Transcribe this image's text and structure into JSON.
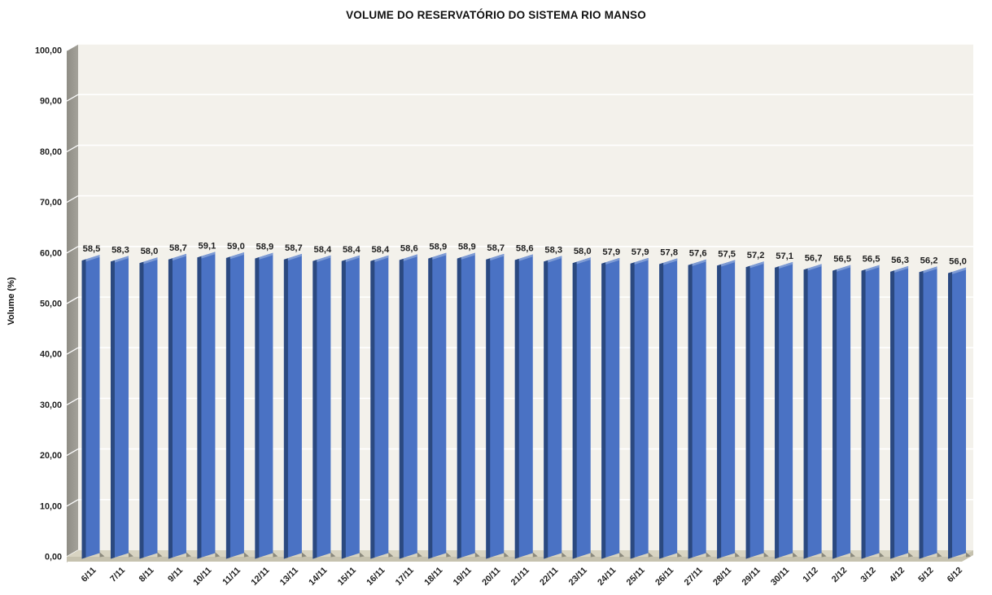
{
  "chart_data": {
    "type": "bar",
    "style": "3d-column",
    "title": "VOLUME DO RESERVATÓRIO DO SISTEMA RIO MANSO",
    "ylabel": "Volume (%)",
    "xlabel": "",
    "ylim": [
      0,
      100
    ],
    "ytick_step": 10,
    "ytick_decimals": 2,
    "value_decimals": 1,
    "decimal_separator": ",",
    "grid": true,
    "legend": "none",
    "categories": [
      "6/11",
      "7/11",
      "8/11",
      "9/11",
      "10/11",
      "11/11",
      "12/11",
      "13/11",
      "14/11",
      "15/11",
      "16/11",
      "17/11",
      "18/11",
      "19/11",
      "20/11",
      "21/11",
      "22/11",
      "23/11",
      "24/11",
      "25/11",
      "26/11",
      "27/11",
      "28/11",
      "29/11",
      "30/11",
      "1/12",
      "2/12",
      "3/12",
      "4/12",
      "5/12",
      "6/12"
    ],
    "values": [
      58.5,
      58.3,
      58.0,
      58.7,
      59.1,
      59.0,
      58.9,
      58.7,
      58.4,
      58.4,
      58.4,
      58.6,
      58.9,
      58.9,
      58.7,
      58.6,
      58.3,
      58.0,
      57.9,
      57.9,
      57.8,
      57.6,
      57.5,
      57.2,
      57.1,
      56.7,
      56.5,
      56.5,
      56.3,
      56.2,
      56.0
    ],
    "colors": {
      "bar_face": "#4A72C4",
      "bar_side": "#2B4980",
      "bar_top": "#7E9BD4",
      "back_wall": "#F3F1EB",
      "side_wall": "#A4A29A",
      "side_wall_dark": "#8F8D85",
      "floor": "#D8D4C2",
      "floor_front": "#C6C2AF",
      "shadow_wedge": "#8B897C",
      "gridline": "#FFFFFF",
      "text": "#1F1F1F"
    }
  }
}
